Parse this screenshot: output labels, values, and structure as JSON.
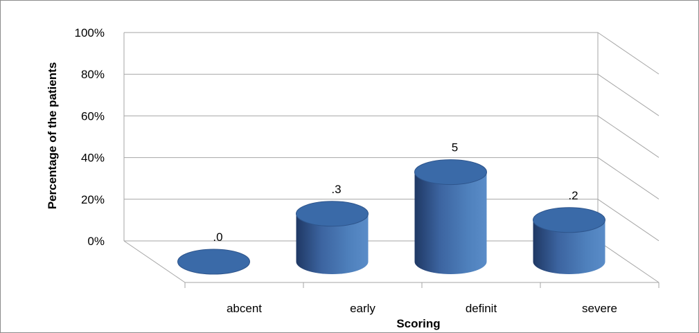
{
  "chart_data": {
    "type": "bar",
    "style": "3d-cylinder",
    "categories": [
      "abcent",
      "early",
      "definit",
      "severe"
    ],
    "series": [
      {
        "values": [
          0,
          23,
          43,
          20
        ]
      }
    ],
    "data_labels": [
      ".0",
      ".3",
      "5",
      ".2"
    ],
    "xlabel": "Scoring",
    "ylabel": "Percentage of the patients",
    "yticks": [
      "0%",
      "20%",
      "40%",
      "60%",
      "80%",
      "100%"
    ],
    "ylim": [
      0,
      100
    ],
    "grid": true,
    "legend": "none",
    "colors": {
      "bar_side": "#4f81bd",
      "bar_dark": "#1f3864",
      "bar_top": "#3a6aa8",
      "grid": "#a6a6a6"
    }
  }
}
